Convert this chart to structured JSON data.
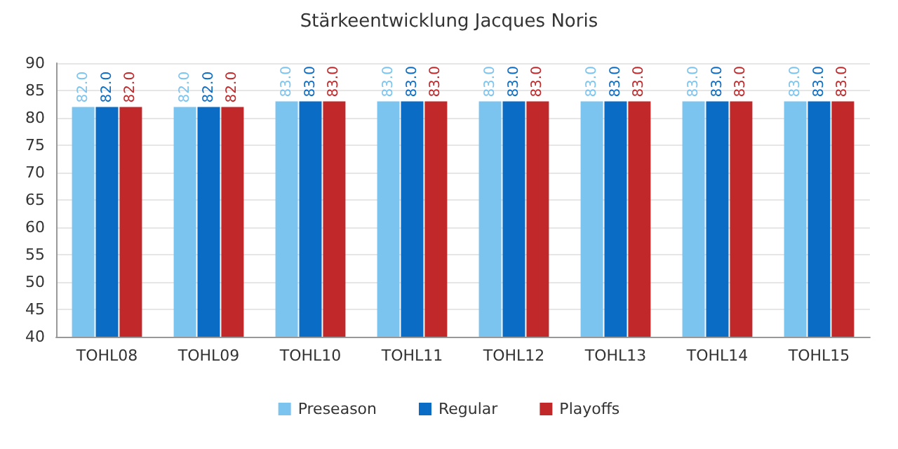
{
  "chart_data": {
    "type": "bar",
    "title": "Stärkeentwicklung Jacques Noris",
    "categories": [
      "TOHL08",
      "TOHL09",
      "TOHL10",
      "TOHL11",
      "TOHL12",
      "TOHL13",
      "TOHL14",
      "TOHL15"
    ],
    "series": [
      {
        "name": "Preseason",
        "color": "#7cc4f0",
        "values": [
          82,
          82,
          83,
          83,
          83,
          83,
          83,
          83
        ],
        "value_labels": [
          "82.0",
          "82.0",
          "83.0",
          "83.0",
          "83.0",
          "83.0",
          "83.0",
          "83.0"
        ]
      },
      {
        "name": "Regular",
        "color": "#0a6cc4",
        "values": [
          82,
          82,
          83,
          83,
          83,
          83,
          83,
          83
        ],
        "value_labels": [
          "82.0",
          "82.0",
          "83.0",
          "83.0",
          "83.0",
          "83.0",
          "83.0",
          "83.0"
        ]
      },
      {
        "name": "Playoffs",
        "color": "#c0282a",
        "values": [
          82,
          82,
          83,
          83,
          83,
          83,
          83,
          83
        ],
        "value_labels": [
          "82.0",
          "82.0",
          "83.0",
          "83.0",
          "83.0",
          "83.0",
          "83.0",
          "83.0"
        ]
      }
    ],
    "ylim": [
      40,
      90
    ],
    "yticks": [
      40,
      45,
      50,
      55,
      60,
      65,
      70,
      75,
      80,
      85,
      90
    ],
    "grid": "y",
    "legend": "bottom"
  }
}
